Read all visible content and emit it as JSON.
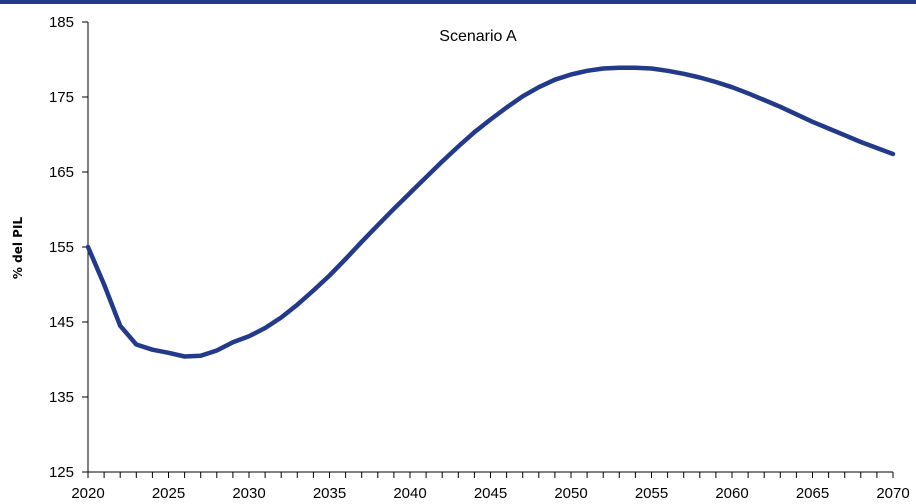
{
  "chart_data": {
    "type": "line",
    "title": "Scenario A",
    "xlabel": "",
    "ylabel": "% del PIL",
    "xlim": [
      2020,
      2070
    ],
    "ylim": [
      125,
      185
    ],
    "x_ticks": [
      2020,
      2025,
      2030,
      2035,
      2040,
      2045,
      2050,
      2055,
      2060,
      2065,
      2070
    ],
    "y_ticks": [
      125,
      135,
      145,
      155,
      165,
      175,
      185
    ],
    "grid": false,
    "legend": "none",
    "series": [
      {
        "color": "#233a8b",
        "x": [
          2020,
          2021,
          2022,
          2023,
          2024,
          2025,
          2026,
          2027,
          2028,
          2029,
          2030,
          2031,
          2032,
          2033,
          2034,
          2035,
          2036,
          2037,
          2038,
          2039,
          2040,
          2041,
          2042,
          2043,
          2044,
          2045,
          2046,
          2047,
          2048,
          2049,
          2050,
          2051,
          2052,
          2053,
          2054,
          2055,
          2056,
          2057,
          2058,
          2059,
          2060,
          2061,
          2062,
          2063,
          2064,
          2065,
          2066,
          2067,
          2068,
          2069,
          2070
        ],
        "y": [
          155.0,
          150.0,
          144.5,
          142.0,
          141.3,
          140.9,
          140.4,
          140.5,
          141.2,
          142.3,
          143.1,
          144.2,
          145.6,
          147.3,
          149.2,
          151.2,
          153.4,
          155.7,
          157.9,
          160.1,
          162.2,
          164.3,
          166.4,
          168.4,
          170.3,
          172.0,
          173.6,
          175.1,
          176.3,
          177.3,
          178.0,
          178.5,
          178.8,
          178.9,
          178.9,
          178.8,
          178.5,
          178.1,
          177.6,
          177.0,
          176.3,
          175.5,
          174.6,
          173.7,
          172.7,
          171.7,
          170.8,
          169.9,
          169.0,
          168.2,
          167.4
        ]
      }
    ]
  },
  "style": {
    "accent_rule_color": "#233a8b",
    "line_color": "#233a8b",
    "axis_color": "#000000"
  }
}
